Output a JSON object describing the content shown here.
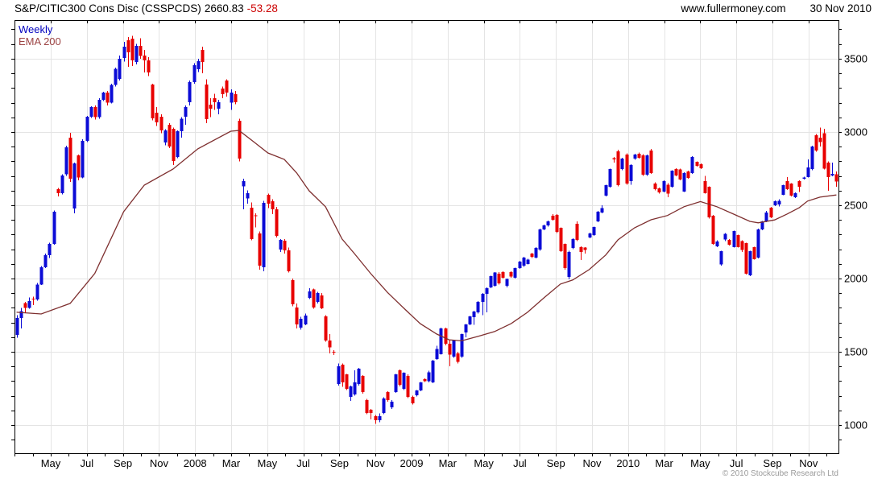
{
  "header": {
    "title": "S&P/CITIC300 Cons Disc (CSSPCDS)",
    "price": "2660.83",
    "change": "-53.28",
    "site": "www.fullermoney.com",
    "date": "30 Nov 2010"
  },
  "legend": {
    "weekly": "Weekly",
    "ema": "EMA 200"
  },
  "footer": {
    "copyright": "© 2010 Stockcube Research Ltd"
  },
  "colors": {
    "up": "#0b0bd6",
    "down": "#e80000",
    "ema": "#7e2f2f",
    "grid": "#e4e4e4",
    "axis": "#000000",
    "change_text": "#cc0000",
    "legend_weekly": "#0000bf",
    "legend_ema": "#9c4343",
    "copyright": "#9a9a9a"
  },
  "chart_data": {
    "type": "candlestick",
    "title": "S&P/CITIC300 Cons Disc (CSSPCDS)",
    "frequency": "Weekly",
    "last_price": 2660.83,
    "change": -53.28,
    "legend": [
      "Weekly",
      "EMA 200"
    ],
    "grid": true,
    "y_axis": {
      "side": "right",
      "range": [
        808,
        3763
      ],
      "ticks": [
        3500,
        3000,
        2500,
        2000,
        1500,
        1000
      ],
      "minor_step": 100
    },
    "x_axis": {
      "start": 63,
      "step": 44.8,
      "minor_step": 22.4,
      "labels": [
        "May",
        "Jul",
        "Sep",
        "Nov",
        "2008",
        "Mar",
        "May",
        "Jul",
        "Sep",
        "Nov",
        "2009",
        "Mar",
        "May",
        "Jul",
        "Sep",
        "Nov",
        "2010",
        "Mar",
        "May",
        "Jul",
        "Sep",
        "Nov"
      ]
    },
    "candles_format": [
      "open",
      "high",
      "low",
      "close"
    ],
    "candles": [
      [
        1615,
        1750,
        1595,
        1730
      ],
      [
        1730,
        1800,
        1660,
        1778
      ],
      [
        1832,
        1840,
        1765,
        1800
      ],
      [
        1800,
        1870,
        1795,
        1845
      ],
      [
        1862,
        1875,
        1820,
        1858
      ],
      [
        1858,
        1970,
        1850,
        1960
      ],
      [
        1960,
        2085,
        1955,
        2077
      ],
      [
        2077,
        2170,
        2070,
        2160
      ],
      [
        2160,
        2245,
        2140,
        2236
      ],
      [
        2236,
        2465,
        2230,
        2456
      ],
      [
        2610,
        2618,
        2560,
        2582
      ],
      [
        2582,
        2710,
        2575,
        2703
      ],
      [
        2710,
        2905,
        2700,
        2895
      ],
      [
        2960,
        2995,
        2660,
        2681
      ],
      [
        2477,
        2790,
        2445,
        2786
      ],
      [
        2840,
        2846,
        2670,
        2690
      ],
      [
        2690,
        2950,
        2685,
        2940
      ],
      [
        2940,
        3110,
        2930,
        3104
      ],
      [
        3104,
        3175,
        3095,
        3170
      ],
      [
        3170,
        3180,
        3085,
        3100
      ],
      [
        3100,
        3230,
        3090,
        3220
      ],
      [
        3220,
        3275,
        3210,
        3269
      ],
      [
        3269,
        3280,
        3180,
        3200
      ],
      [
        3200,
        3330,
        3195,
        3320
      ],
      [
        3320,
        3440,
        3310,
        3430
      ],
      [
        3361,
        3520,
        3350,
        3500
      ],
      [
        3505,
        3615,
        3480,
        3582
      ],
      [
        3626,
        3648,
        3445,
        3544
      ],
      [
        3637,
        3655,
        3451,
        3489
      ],
      [
        3478,
        3600,
        3460,
        3588
      ],
      [
        3588,
        3640,
        3500,
        3520
      ],
      [
        3520,
        3560,
        3405,
        3489
      ],
      [
        3489,
        3510,
        3380,
        3405
      ],
      [
        3324,
        3330,
        3080,
        3093
      ],
      [
        3132,
        3170,
        3040,
        3066
      ],
      [
        3104,
        3120,
        2990,
        3011
      ],
      [
        2929,
        3020,
        2910,
        3011
      ],
      [
        3049,
        3060,
        2890,
        2901
      ],
      [
        3022,
        3030,
        2775,
        2802
      ],
      [
        2830,
        3010,
        2820,
        3005
      ],
      [
        3005,
        3100,
        2960,
        3090
      ],
      [
        3104,
        3180,
        3050,
        3170
      ],
      [
        3203,
        3350,
        3180,
        3341
      ],
      [
        3341,
        3470,
        3330,
        3456
      ],
      [
        3428,
        3500,
        3410,
        3483
      ],
      [
        3560,
        3582,
        3401,
        3478
      ],
      [
        3324,
        3360,
        3060,
        3088
      ],
      [
        3187,
        3230,
        3100,
        3159
      ],
      [
        3231,
        3260,
        3150,
        3203
      ],
      [
        3159,
        3220,
        3120,
        3203
      ],
      [
        3297,
        3310,
        3230,
        3258
      ],
      [
        3352,
        3360,
        3240,
        3269
      ],
      [
        3200,
        3290,
        3150,
        3270
      ],
      [
        3258,
        3280,
        3190,
        3203
      ],
      [
        3077,
        3090,
        2800,
        2819
      ],
      [
        2629,
        2680,
        2473,
        2665
      ],
      [
        2546,
        2600,
        2510,
        2582
      ],
      [
        2484,
        2520,
        2260,
        2270
      ],
      [
        2430,
        2445,
        2350,
        2425
      ],
      [
        2308,
        2320,
        2060,
        2088
      ],
      [
        2077,
        2530,
        2050,
        2517
      ],
      [
        2572,
        2580,
        2480,
        2511
      ],
      [
        2528,
        2540,
        2440,
        2473
      ],
      [
        2473,
        2490,
        2280,
        2292
      ],
      [
        2198,
        2270,
        2180,
        2264
      ],
      [
        2259,
        2270,
        2170,
        2193
      ],
      [
        2193,
        2210,
        2040,
        2050
      ],
      [
        1989,
        2000,
        1810,
        1824
      ],
      [
        1802,
        1830,
        1660,
        1687
      ],
      [
        1665,
        1740,
        1650,
        1725
      ],
      [
        1687,
        1760,
        1680,
        1747
      ],
      [
        1868,
        1934,
        1860,
        1912
      ],
      [
        1925,
        1930,
        1795,
        1802
      ],
      [
        1840,
        1910,
        1830,
        1901
      ],
      [
        1885,
        1900,
        1790,
        1797
      ],
      [
        1741,
        1750,
        1570,
        1577
      ],
      [
        1577,
        1620,
        1490,
        1530
      ],
      [
        1500,
        1510,
        1478,
        1495
      ],
      [
        1280,
        1420,
        1270,
        1401
      ],
      [
        1412,
        1420,
        1260,
        1291
      ],
      [
        1346,
        1350,
        1240,
        1247
      ],
      [
        1192,
        1270,
        1165,
        1263
      ],
      [
        1209,
        1374,
        1200,
        1291
      ],
      [
        1280,
        1390,
        1270,
        1385
      ],
      [
        1335,
        1340,
        1215,
        1225
      ],
      [
        1170,
        1180,
        1075,
        1082
      ],
      [
        1105,
        1110,
        1040,
        1082
      ],
      [
        1060,
        1070,
        1008,
        1033
      ],
      [
        1033,
        1080,
        1020,
        1060
      ],
      [
        1082,
        1190,
        1075,
        1181
      ],
      [
        1225,
        1232,
        1160,
        1170
      ],
      [
        1120,
        1170,
        1110,
        1160
      ],
      [
        1225,
        1350,
        1220,
        1346
      ],
      [
        1374,
        1380,
        1265,
        1274
      ],
      [
        1247,
        1360,
        1240,
        1357
      ],
      [
        1335,
        1345,
        1185,
        1192
      ],
      [
        1192,
        1200,
        1140,
        1148
      ],
      [
        1203,
        1240,
        1195,
        1236
      ],
      [
        1236,
        1295,
        1230,
        1291
      ],
      [
        1313,
        1320,
        1295,
        1300
      ],
      [
        1300,
        1370,
        1290,
        1360
      ],
      [
        1291,
        1445,
        1285,
        1440
      ],
      [
        1450,
        1540,
        1445,
        1520
      ],
      [
        1484,
        1665,
        1480,
        1659
      ],
      [
        1659,
        1665,
        1545,
        1555
      ],
      [
        1555,
        1580,
        1400,
        1480
      ],
      [
        1467,
        1580,
        1460,
        1577
      ],
      [
        1490,
        1500,
        1420,
        1430
      ],
      [
        1467,
        1625,
        1460,
        1620
      ],
      [
        1632,
        1690,
        1600,
        1687
      ],
      [
        1687,
        1745,
        1680,
        1741
      ],
      [
        1735,
        1780,
        1685,
        1775
      ],
      [
        1769,
        1845,
        1760,
        1841
      ],
      [
        1840,
        1900,
        1750,
        1896
      ],
      [
        1895,
        1940,
        1770,
        1934
      ],
      [
        1940,
        2020,
        1935,
        2017
      ],
      [
        1950,
        2045,
        1945,
        2040
      ],
      [
        2033,
        2045,
        1960,
        1967
      ],
      [
        2044,
        2050,
        2000,
        2006
      ],
      [
        1950,
        2000,
        1940,
        1998
      ],
      [
        2044,
        2050,
        2005,
        2015
      ],
      [
        2006,
        2075,
        2000,
        2072
      ],
      [
        2072,
        2120,
        2065,
        2116
      ],
      [
        2088,
        2148,
        2080,
        2143
      ],
      [
        2100,
        2135,
        2095,
        2130
      ],
      [
        2171,
        2175,
        2140,
        2148
      ],
      [
        2143,
        2215,
        2138,
        2209
      ],
      [
        2198,
        2340,
        2190,
        2335
      ],
      [
        2335,
        2368,
        2330,
        2363
      ],
      [
        2363,
        2395,
        2355,
        2390
      ],
      [
        2429,
        2440,
        2395,
        2402
      ],
      [
        2434,
        2438,
        2310,
        2319
      ],
      [
        2346,
        2350,
        2180,
        2187
      ],
      [
        2236,
        2240,
        2060,
        2070
      ],
      [
        2010,
        2190,
        1995,
        2181
      ],
      [
        2209,
        2275,
        2200,
        2270
      ],
      [
        2374,
        2390,
        2255,
        2264
      ],
      [
        2214,
        2220,
        2126,
        2181
      ],
      [
        2210,
        2215,
        2170,
        2195
      ],
      [
        2280,
        2312,
        2275,
        2308
      ],
      [
        2297,
        2355,
        2290,
        2352
      ],
      [
        2390,
        2460,
        2385,
        2456
      ],
      [
        2451,
        2500,
        2445,
        2480
      ],
      [
        2566,
        2640,
        2560,
        2637
      ],
      [
        2627,
        2750,
        2620,
        2747
      ],
      [
        2820,
        2830,
        2790,
        2813
      ],
      [
        2868,
        2880,
        2630,
        2637
      ],
      [
        2747,
        2825,
        2740,
        2819
      ],
      [
        2846,
        2855,
        2640,
        2648
      ],
      [
        2665,
        2780,
        2640,
        2775
      ],
      [
        2819,
        2850,
        2810,
        2846
      ],
      [
        2852,
        2860,
        2818,
        2824
      ],
      [
        2841,
        2848,
        2700,
        2709
      ],
      [
        2709,
        2845,
        2700,
        2841
      ],
      [
        2874,
        2885,
        2715,
        2720
      ],
      [
        2648,
        2655,
        2600,
        2610
      ],
      [
        2615,
        2620,
        2580,
        2588
      ],
      [
        2593,
        2670,
        2588,
        2665
      ],
      [
        2640,
        2650,
        2555,
        2580
      ],
      [
        2626,
        2740,
        2620,
        2736
      ],
      [
        2747,
        2752,
        2698,
        2703
      ],
      [
        2745,
        2750,
        2670,
        2676
      ],
      [
        2593,
        2725,
        2590,
        2720
      ],
      [
        2731,
        2736,
        2680,
        2687
      ],
      [
        2720,
        2835,
        2715,
        2830
      ],
      [
        2797,
        2800,
        2762,
        2769
      ],
      [
        2780,
        2785,
        2748,
        2753
      ],
      [
        2665,
        2700,
        2578,
        2582
      ],
      [
        2626,
        2630,
        2410,
        2417
      ],
      [
        2429,
        2435,
        2230,
        2236
      ],
      [
        2220,
        2260,
        2215,
        2253
      ],
      [
        2097,
        2190,
        2088,
        2187
      ],
      [
        2265,
        2310,
        2255,
        2305
      ],
      [
        2264,
        2270,
        2225,
        2231
      ],
      [
        2214,
        2328,
        2210,
        2324
      ],
      [
        2297,
        2300,
        2210,
        2214
      ],
      [
        2255,
        2260,
        2180,
        2195
      ],
      [
        2242,
        2245,
        2028,
        2033
      ],
      [
        2022,
        2190,
        2015,
        2187
      ],
      [
        2214,
        2218,
        2128,
        2132
      ],
      [
        2143,
        2340,
        2138,
        2335
      ],
      [
        2335,
        2393,
        2330,
        2390
      ],
      [
        2390,
        2460,
        2385,
        2451
      ],
      [
        2484,
        2490,
        2412,
        2418
      ],
      [
        2500,
        2532,
        2495,
        2528
      ],
      [
        2505,
        2540,
        2492,
        2530
      ],
      [
        2572,
        2640,
        2568,
        2637
      ],
      [
        2665,
        2692,
        2605,
        2610
      ],
      [
        2648,
        2652,
        2560,
        2566
      ],
      [
        2555,
        2588,
        2550,
        2583
      ],
      [
        2665,
        2670,
        2590,
        2625
      ],
      [
        2680,
        2695,
        2675,
        2690
      ],
      [
        2692,
        2813,
        2688,
        2758
      ],
      [
        2747,
        2905,
        2740,
        2901
      ],
      [
        2978,
        2985,
        2865,
        2874
      ],
      [
        2960,
        3030,
        2900,
        2930
      ],
      [
        2990,
        3022,
        2745,
        2750
      ],
      [
        2791,
        2800,
        2599,
        2692
      ],
      [
        2703,
        2790,
        2698,
        2714
      ],
      [
        2710,
        2730,
        2625,
        2660.83
      ]
    ],
    "ema": {
      "name": "EMA 200",
      "anchors": [
        [
          0,
          1770
        ],
        [
          6,
          1758
        ],
        [
          13,
          1830
        ],
        [
          19,
          2035
        ],
        [
          26,
          2456
        ],
        [
          31,
          2637
        ],
        [
          38,
          2747
        ],
        [
          44,
          2885
        ],
        [
          52,
          3005
        ],
        [
          54,
          3010
        ],
        [
          58,
          2923
        ],
        [
          61,
          2857
        ],
        [
          65,
          2813
        ],
        [
          68,
          2720
        ],
        [
          71,
          2599
        ],
        [
          75,
          2489
        ],
        [
          79,
          2270
        ],
        [
          82,
          2170
        ],
        [
          86,
          2033
        ],
        [
          90,
          1906
        ],
        [
          94,
          1797
        ],
        [
          98,
          1692
        ],
        [
          102,
          1621
        ],
        [
          105,
          1582
        ],
        [
          108,
          1575
        ],
        [
          112,
          1605
        ],
        [
          116,
          1638
        ],
        [
          120,
          1692
        ],
        [
          124,
          1769
        ],
        [
          128,
          1868
        ],
        [
          132,
          1962
        ],
        [
          135,
          1990
        ],
        [
          139,
          2061
        ],
        [
          143,
          2160
        ],
        [
          146,
          2264
        ],
        [
          150,
          2346
        ],
        [
          154,
          2401
        ],
        [
          158,
          2430
        ],
        [
          162,
          2490
        ],
        [
          166,
          2525
        ],
        [
          170,
          2490
        ],
        [
          174,
          2440
        ],
        [
          178,
          2390
        ],
        [
          180,
          2380
        ],
        [
          184,
          2400
        ],
        [
          187,
          2440
        ],
        [
          190,
          2484
        ],
        [
          192,
          2528
        ],
        [
          195,
          2555
        ],
        [
          199,
          2570
        ]
      ]
    }
  }
}
